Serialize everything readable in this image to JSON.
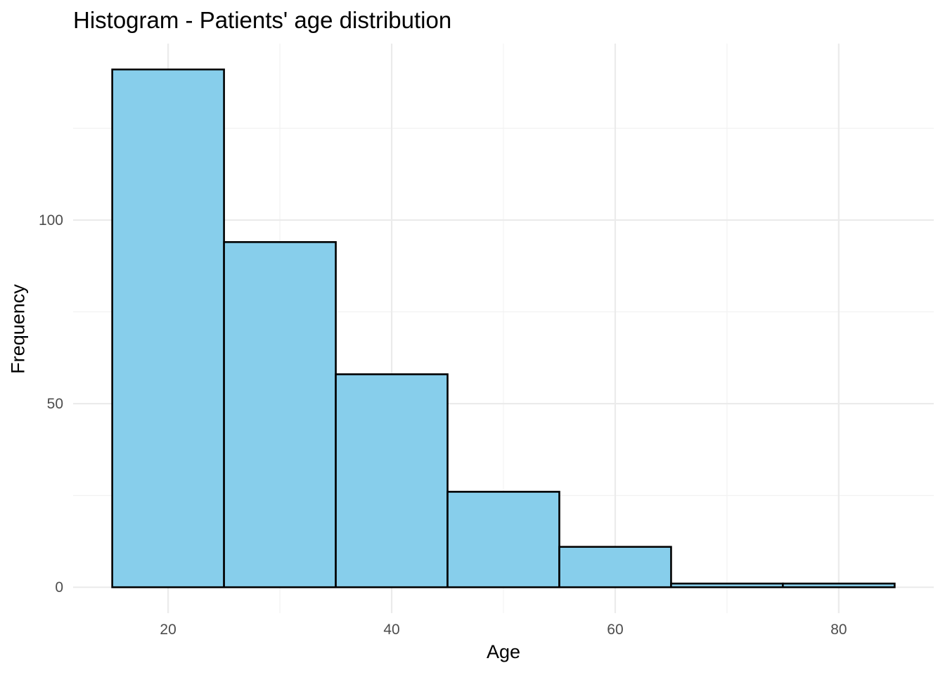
{
  "colors": {
    "bar_fill": "#87CEEB",
    "bar_stroke": "#000000",
    "grid_major": "#ebebeb",
    "grid_minor": "#f2f2f2",
    "text_dark": "#000000",
    "tick_text": "#4d4d4d",
    "background": "#ffffff"
  },
  "chart_data": {
    "type": "bar",
    "title": "Histogram - Patients' age distribution",
    "xlabel": "Age",
    "ylabel": "Frequency",
    "bins": [
      {
        "start": 15,
        "end": 25,
        "count": 141
      },
      {
        "start": 25,
        "end": 35,
        "count": 94
      },
      {
        "start": 35,
        "end": 45,
        "count": 58
      },
      {
        "start": 45,
        "end": 55,
        "count": 26
      },
      {
        "start": 55,
        "end": 65,
        "count": 11
      },
      {
        "start": 65,
        "end": 75,
        "count": 1
      },
      {
        "start": 75,
        "end": 85,
        "count": 1
      }
    ],
    "x_ticks": [
      20,
      40,
      60,
      80
    ],
    "x_minor_ticks": [
      30,
      50,
      70
    ],
    "y_ticks": [
      0,
      50,
      100
    ],
    "y_minor_ticks": [
      25,
      75,
      125
    ],
    "xlim": [
      11.5,
      88.5
    ],
    "ylim": [
      -7.05,
      148.05
    ],
    "grid": true,
    "legend": "none"
  }
}
